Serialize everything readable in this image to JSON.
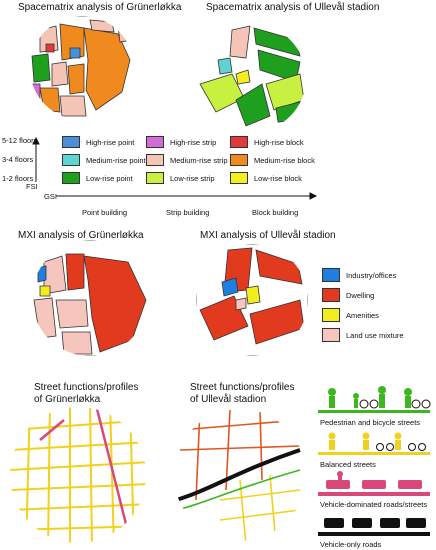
{
  "spacematrix": {
    "title_left": "Spacematrix analysis of Grünerløkka",
    "title_right": "Spacematrix analysis of Ullevål stadion",
    "floors": [
      "5-12 floors",
      "3-4 floors",
      "1-2 floors"
    ],
    "axis_y": "FSI",
    "axis_x": "GSI",
    "columns": [
      "Point building",
      "Strip building",
      "Block building"
    ],
    "legend": [
      {
        "label": "High-rise point",
        "color": "#4a90d9"
      },
      {
        "label": "Medium-rise point",
        "color": "#5fd3cf"
      },
      {
        "label": "Low-rise point",
        "color": "#1ea01e"
      },
      {
        "label": "High-rise strip",
        "color": "#d36bd8"
      },
      {
        "label": "Medium-rise strip",
        "color": "#f4c4b7"
      },
      {
        "label": "Low-rise strip",
        "color": "#c8f040"
      },
      {
        "label": "High-rise block",
        "color": "#e03a3a"
      },
      {
        "label": "Medium-rise block",
        "color": "#f08a1e"
      },
      {
        "label": "Low-rise block",
        "color": "#f4ee1e"
      }
    ]
  },
  "mxi": {
    "title_left": "MXI analysis of Grünerløkka",
    "title_right": "MXI analysis of Ullevål stadion",
    "legend": [
      {
        "label": "Industry/offices",
        "color": "#1f7fe0"
      },
      {
        "label": "Dwelling",
        "color": "#e23a1e"
      },
      {
        "label": "Amenities",
        "color": "#f2ee1e"
      },
      {
        "label": "Land use mixture",
        "color": "#f6c6be"
      }
    ]
  },
  "streets": {
    "title_left_1": "Street functions/profiles",
    "title_left_2": "of Grünerløkka",
    "title_right_1": "Street functions/profiles",
    "title_right_2": "of Ullevål stadion",
    "legend": [
      {
        "label": "Pedestrian and bicycle streets",
        "color": "#3cb81e"
      },
      {
        "label": "Balanced streets",
        "color": "#f0d21e"
      },
      {
        "label": "Vehicle-dominated roads/streets",
        "color": "#d9487a"
      },
      {
        "label": "Vehicle-only roads",
        "color": "#111111"
      }
    ]
  }
}
